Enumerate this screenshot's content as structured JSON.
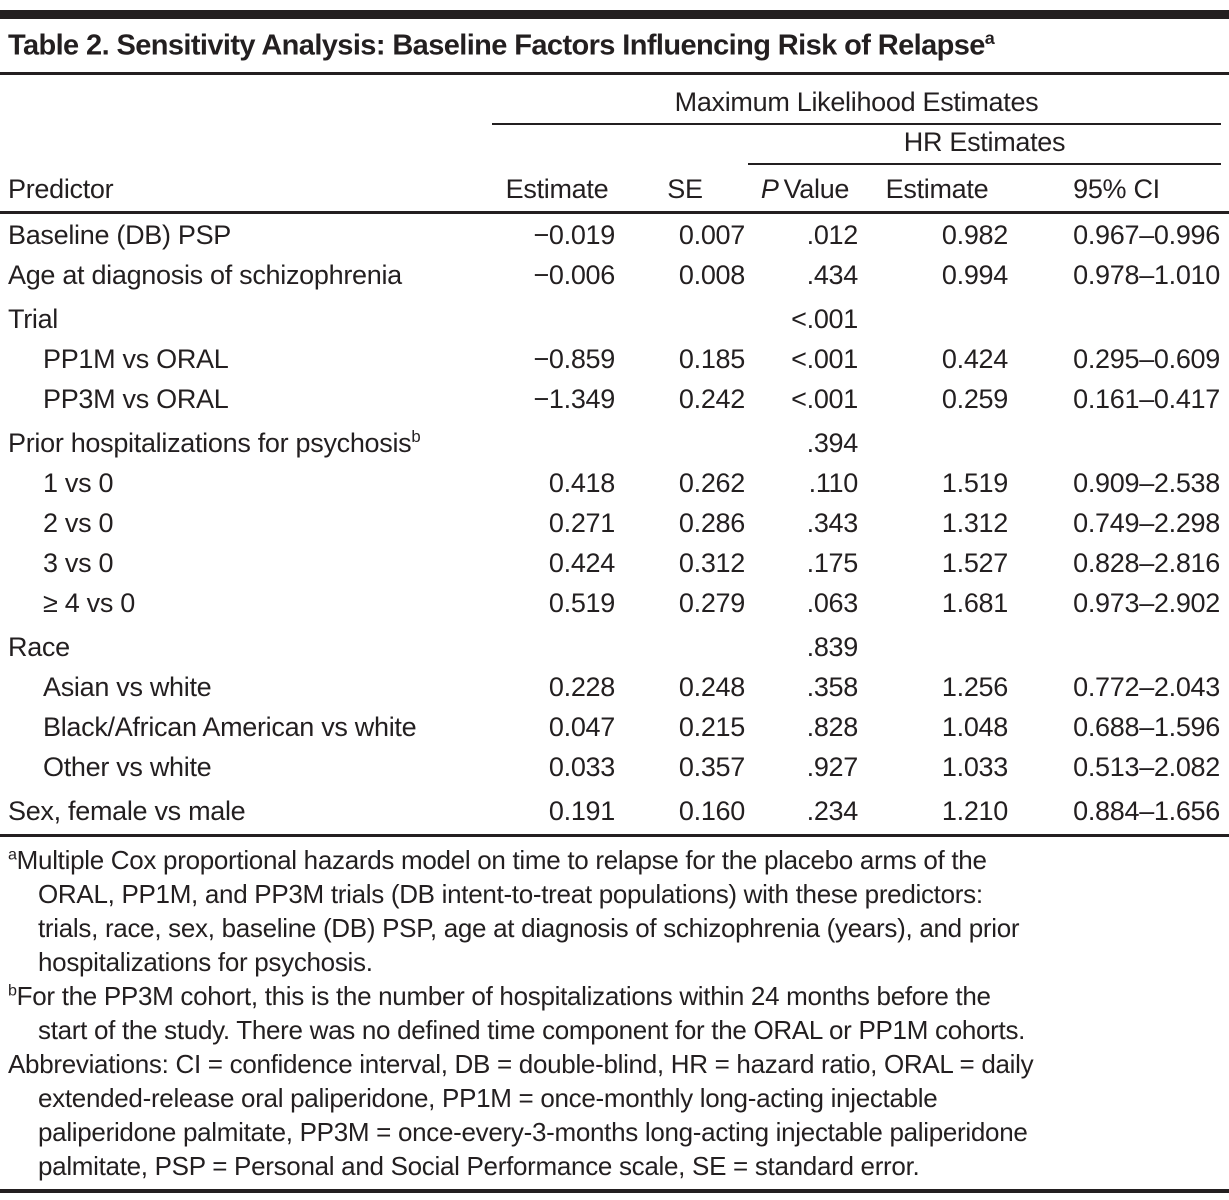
{
  "title": {
    "text": "Table 2. Sensitivity Analysis: Baseline Factors Influencing Risk of Relapse",
    "superscript": "a"
  },
  "table": {
    "spanners": {
      "maximum_likelihood": "Maximum Likelihood Estimates",
      "hr_estimates": "HR Estimates"
    },
    "columns": {
      "predictor": "Predictor",
      "ml_estimate": "Estimate",
      "se": "SE",
      "p_value_italic": "P",
      "p_value_rest": "Value",
      "hr_estimate": "Estimate",
      "ci": "95% CI"
    },
    "rows": [
      {
        "label": "Baseline (DB) PSP",
        "indent": false,
        "group_gap": false,
        "sup": "",
        "values": [
          "−0.019",
          "0.007",
          ".012",
          "0.982",
          "0.967–0.996"
        ]
      },
      {
        "label": "Age at diagnosis of schizophrenia",
        "indent": false,
        "group_gap": false,
        "sup": "",
        "values": [
          "−0.006",
          "0.008",
          ".434",
          "0.994",
          "0.978–1.010"
        ]
      },
      {
        "label": "Trial",
        "indent": false,
        "group_gap": true,
        "sup": "",
        "values": [
          "",
          "",
          "<.001",
          "",
          ""
        ]
      },
      {
        "label": "PP1M vs ORAL",
        "indent": true,
        "group_gap": false,
        "sup": "",
        "values": [
          "−0.859",
          "0.185",
          "<.001",
          "0.424",
          "0.295–0.609"
        ]
      },
      {
        "label": "PP3M vs ORAL",
        "indent": true,
        "group_gap": false,
        "sup": "",
        "values": [
          "−1.349",
          "0.242",
          "<.001",
          "0.259",
          "0.161–0.417"
        ]
      },
      {
        "label": "Prior hospitalizations for psychosis",
        "indent": false,
        "group_gap": true,
        "sup": "b",
        "values": [
          "",
          "",
          ".394",
          "",
          ""
        ]
      },
      {
        "label": "1 vs 0",
        "indent": true,
        "group_gap": false,
        "sup": "",
        "values": [
          "0.418",
          "0.262",
          ".110",
          "1.519",
          "0.909–2.538"
        ]
      },
      {
        "label": "2 vs 0",
        "indent": true,
        "group_gap": false,
        "sup": "",
        "values": [
          "0.271",
          "0.286",
          ".343",
          "1.312",
          "0.749–2.298"
        ]
      },
      {
        "label": "3 vs 0",
        "indent": true,
        "group_gap": false,
        "sup": "",
        "values": [
          "0.424",
          "0.312",
          ".175",
          "1.527",
          "0.828–2.816"
        ]
      },
      {
        "label": "≥ 4 vs 0",
        "indent": true,
        "group_gap": false,
        "sup": "",
        "values": [
          "0.519",
          "0.279",
          ".063",
          "1.681",
          "0.973–2.902"
        ]
      },
      {
        "label": "Race",
        "indent": false,
        "group_gap": true,
        "sup": "",
        "values": [
          "",
          "",
          ".839",
          "",
          ""
        ]
      },
      {
        "label": "Asian vs white",
        "indent": true,
        "group_gap": false,
        "sup": "",
        "values": [
          "0.228",
          "0.248",
          ".358",
          "1.256",
          "0.772–2.043"
        ]
      },
      {
        "label": "Black/African American vs white",
        "indent": true,
        "group_gap": false,
        "sup": "",
        "values": [
          "0.047",
          "0.215",
          ".828",
          "1.048",
          "0.688–1.596"
        ]
      },
      {
        "label": "Other vs white",
        "indent": true,
        "group_gap": false,
        "sup": "",
        "values": [
          "0.033",
          "0.357",
          ".927",
          "1.033",
          "0.513–2.082"
        ]
      },
      {
        "label": "Sex, female vs male",
        "indent": false,
        "group_gap": true,
        "sup": "",
        "values": [
          "0.191",
          "0.160",
          ".234",
          "1.210",
          "0.884–1.656"
        ]
      }
    ]
  },
  "footnotes": [
    {
      "sup": "a",
      "lines": [
        "Multiple Cox proportional hazards model on time to relapse for the placebo arms of the",
        "ORAL, PP1M, and PP3M trials (DB intent-to-treat populations) with these predictors:",
        "trials, race, sex, baseline (DB) PSP, age at diagnosis of schizophrenia (years), and prior",
        "hospitalizations for psychosis."
      ]
    },
    {
      "sup": "b",
      "lines": [
        "For the PP3M cohort, this is the number of hospitalizations within 24 months before the",
        "start of the study. There was no defined time component for the ORAL or PP1M cohorts."
      ]
    },
    {
      "sup": "",
      "lines": [
        "Abbreviations: CI = confidence interval, DB = double-blind, HR = hazard ratio, ORAL = daily",
        "extended-release oral paliperidone, PP1M = once-monthly long-acting injectable",
        "paliperidone palmitate, PP3M = once-every-3-months long-acting injectable paliperidone",
        "palmitate, PSP = Personal and Social Performance scale, SE = standard error."
      ]
    }
  ]
}
